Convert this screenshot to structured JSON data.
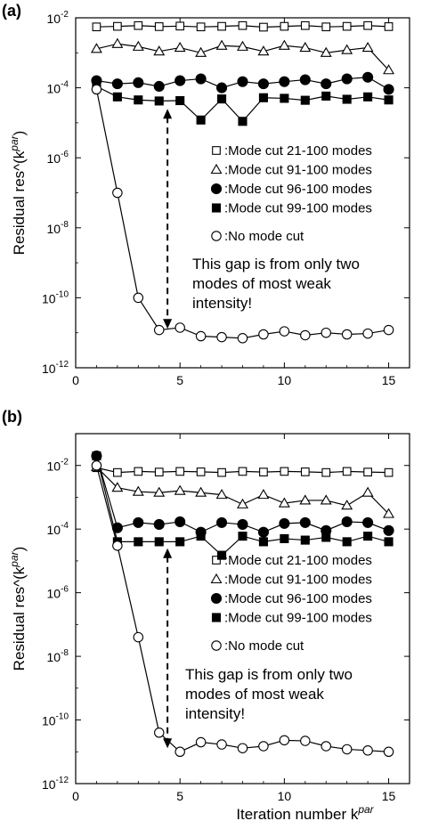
{
  "chart_data": [
    {
      "panel_label": "(a)",
      "type": "line",
      "ylabel": "Residual res^(k",
      "ylabel_sup": "par",
      "ylabel_tail": ")",
      "xlabel": "",
      "xlabel_sup": "",
      "xlim": [
        0,
        16
      ],
      "xticks": [
        "0",
        "5",
        "10",
        "15"
      ],
      "ylim": [
        1e-12,
        0.01
      ],
      "yscale": "log",
      "yticks": [
        {
          "base": "10",
          "exp": "-2"
        },
        {
          "base": "10",
          "exp": "-4"
        },
        {
          "base": "10",
          "exp": "-6"
        },
        {
          "base": "10",
          "exp": "-8"
        },
        {
          "base": "10",
          "exp": "-10"
        },
        {
          "base": "10",
          "exp": "-12"
        }
      ],
      "x": [
        1,
        2,
        3,
        4,
        5,
        6,
        7,
        8,
        9,
        10,
        11,
        12,
        13,
        14,
        15
      ],
      "series": [
        {
          "name": ":Mode cut 21-100 modes",
          "marker": "square-open",
          "values": [
            0.0055,
            0.0057,
            0.006,
            0.0056,
            0.0058,
            0.0055,
            0.0057,
            0.006,
            0.0054,
            0.0057,
            0.006,
            0.0055,
            0.0057,
            0.006,
            0.0056
          ]
        },
        {
          "name": ":Mode cut 91-100 modes",
          "marker": "triangle-open",
          "values": [
            0.0013,
            0.0018,
            0.0015,
            0.0011,
            0.0014,
            0.001,
            0.0016,
            0.0015,
            0.0011,
            0.0016,
            0.0014,
            0.001,
            0.0012,
            0.0014,
            0.00032
          ]
        },
        {
          "name": ":Mode cut 96-100 modes",
          "marker": "circle-filled",
          "values": [
            0.00016,
            0.00013,
            0.00014,
            0.00011,
            0.00016,
            0.00018,
            0.0001,
            0.00015,
            0.00013,
            0.00015,
            0.00017,
            0.00013,
            0.00018,
            0.0002,
            9e-05
          ]
        },
        {
          "name": ":Mode cut 99-100 modes",
          "marker": "square-filled",
          "values": [
            0.00011,
            5.5e-05,
            4.5e-05,
            4.2e-05,
            4.3e-05,
            1.2e-05,
            4.8e-05,
            1.1e-05,
            5.2e-05,
            5e-05,
            4.4e-05,
            5.8e-05,
            4.7e-05,
            5.5e-05,
            4.5e-05
          ]
        },
        {
          "name": ":No mode cut",
          "marker": "circle-open",
          "values": [
            9e-05,
            1e-07,
            1e-10,
            1.2e-11,
            1.4e-11,
            8e-12,
            7.5e-12,
            7e-12,
            9e-12,
            1.1e-11,
            8.5e-12,
            1e-11,
            9e-12,
            9.5e-12,
            1.2e-11
          ]
        }
      ],
      "annotation": {
        "lines": [
          "This gap is from only two",
          "modes of most weak",
          "intensity!"
        ],
        "arrow_x": 4.4,
        "arrow_y": [
          2.5e-05,
          1.3e-11
        ]
      }
    },
    {
      "panel_label": "(b)",
      "type": "line",
      "ylabel": "Residual res^(k",
      "ylabel_sup": "par",
      "ylabel_tail": ")",
      "xlabel": "Iteration number k",
      "xlabel_sup": "par",
      "xlim": [
        0,
        16
      ],
      "xticks": [
        "0",
        "5",
        "10",
        "15"
      ],
      "ylim": [
        1e-12,
        0.1
      ],
      "yscale": "log",
      "yticks": [
        {
          "base": "10",
          "exp": "-2"
        },
        {
          "base": "10",
          "exp": "-4"
        },
        {
          "base": "10",
          "exp": "-6"
        },
        {
          "base": "10",
          "exp": "-8"
        },
        {
          "base": "10",
          "exp": "-10"
        },
        {
          "base": "10",
          "exp": "-12"
        }
      ],
      "x": [
        1,
        2,
        3,
        4,
        5,
        6,
        7,
        8,
        9,
        10,
        11,
        12,
        13,
        14,
        15
      ],
      "series": [
        {
          "name": ":Mode cut 21-100 modes",
          "marker": "square-open",
          "values": [
            0.0085,
            0.006,
            0.0065,
            0.0062,
            0.0065,
            0.0063,
            0.006,
            0.0065,
            0.0062,
            0.0065,
            0.0063,
            0.006,
            0.0065,
            0.0062,
            0.006
          ]
        },
        {
          "name": ":Mode cut 91-100 modes",
          "marker": "triangle-open",
          "values": [
            0.009,
            0.002,
            0.0015,
            0.0014,
            0.0016,
            0.0014,
            0.0012,
            0.0006,
            0.0012,
            0.00065,
            0.0008,
            0.0008,
            0.00055,
            0.0014,
            0.0003
          ]
        },
        {
          "name": ":Mode cut 96-100 modes",
          "marker": "circle-filled",
          "values": [
            0.02,
            0.00011,
            0.00016,
            0.00014,
            0.00017,
            8e-05,
            0.00016,
            0.00014,
            8e-05,
            0.00015,
            0.00016,
            9e-05,
            0.00017,
            0.00016,
            9e-05
          ]
        },
        {
          "name": ":Mode cut 99-100 modes",
          "marker": "square-filled",
          "values": [
            0.02,
            4e-05,
            4e-05,
            4e-05,
            4e-05,
            6e-05,
            1.5e-05,
            6e-05,
            4e-05,
            5e-05,
            4.5e-05,
            5.5e-05,
            4e-05,
            6e-05,
            4e-05
          ]
        },
        {
          "name": ":No mode cut",
          "marker": "circle-open",
          "values": [
            0.01,
            3e-05,
            4e-08,
            4e-11,
            1e-11,
            2e-11,
            1.7e-11,
            1.3e-11,
            1.5e-11,
            2.3e-11,
            2.2e-11,
            1.5e-11,
            1.2e-11,
            1.1e-11,
            1e-11
          ]
        }
      ],
      "annotation": {
        "lines": [
          "This gap is from only two",
          "modes of most weak",
          "intensity!"
        ],
        "arrow_x": 4.4,
        "arrow_y": [
          2.5e-05,
          1.3e-11
        ]
      }
    }
  ]
}
